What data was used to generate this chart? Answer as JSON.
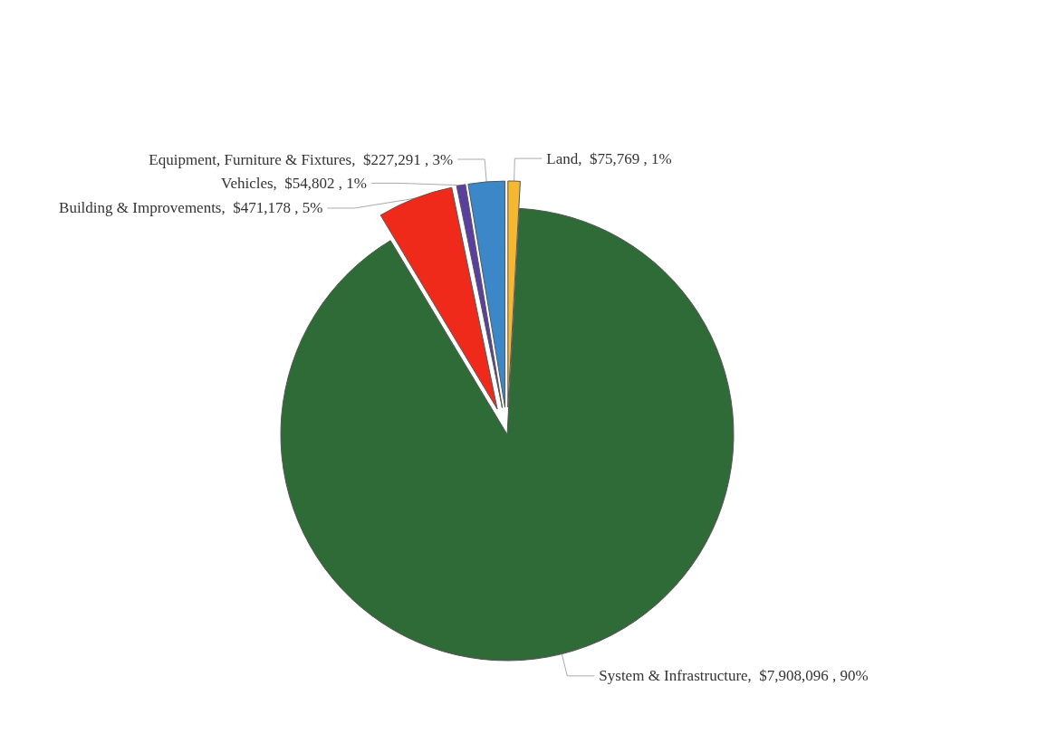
{
  "chart_data": {
    "type": "pie",
    "categories": [
      "Land",
      "System & Infrastructure",
      "Building & Improvements",
      "Vehicles",
      "Equipment, Furniture & Fixtures"
    ],
    "values": [
      75769,
      7908096,
      471178,
      54802,
      227291
    ],
    "value_labels": [
      "$75,769 , 1%",
      "$7,908,096 , 90%",
      "$471,178 , 5%",
      "$54,802 , 1%",
      "$227,291 , 3%"
    ],
    "colors": [
      "#f5b82e",
      "#2f6b36",
      "#f02a1a",
      "#5b3fa0",
      "#3c87c8"
    ],
    "legend": false
  }
}
